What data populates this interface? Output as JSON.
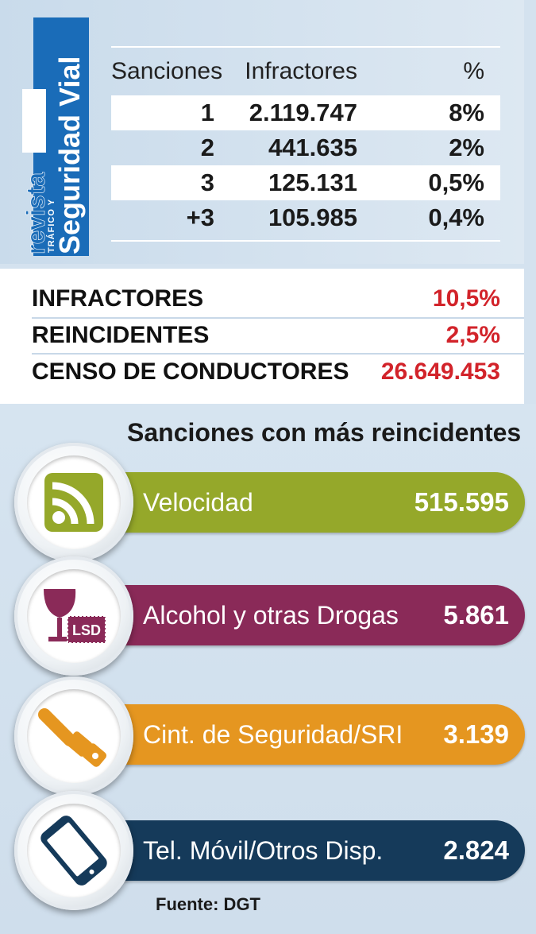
{
  "logo": {
    "word1": "revista",
    "word2": "TRÁFICO Y",
    "word3": "Seguridad Vial"
  },
  "table": {
    "headers": [
      "Sanciones",
      "Infractores",
      "%"
    ],
    "rows": [
      {
        "sanciones": "1",
        "infractores": "2.119.747",
        "pct": "8%"
      },
      {
        "sanciones": "2",
        "infractores": "441.635",
        "pct": "2%"
      },
      {
        "sanciones": "3",
        "infractores": "125.131",
        "pct": "0,5%"
      },
      {
        "sanciones": "+3",
        "infractores": "105.985",
        "pct": "0,4%"
      }
    ]
  },
  "summary": [
    {
      "label": "INFRACTORES",
      "value": "10,5%"
    },
    {
      "label": "REINCIDENTES",
      "value": "2,5%"
    },
    {
      "label": "CENSO DE CONDUCTORES",
      "value": "26.649.453"
    }
  ],
  "section": {
    "title": "Sanciones con más reincidentes",
    "items": [
      {
        "label": "Velocidad",
        "value": "515.595",
        "color": "#95a82a",
        "icon": "speed-icon"
      },
      {
        "label": "Alcohol y otras Drogas",
        "value": "5.861",
        "color": "#8a2a58",
        "icon": "alcohol-drugs-icon",
        "stamp": "LSD"
      },
      {
        "label": "Cint. de Seguridad/SRI",
        "value": "3.139",
        "color": "#e59620",
        "icon": "seatbelt-icon"
      },
      {
        "label": "Tel. Móvil/Otros Disp.",
        "value": "2.824",
        "color": "#153a5a",
        "icon": "mobile-phone-icon"
      }
    ]
  },
  "source": "Fuente: DGT"
}
